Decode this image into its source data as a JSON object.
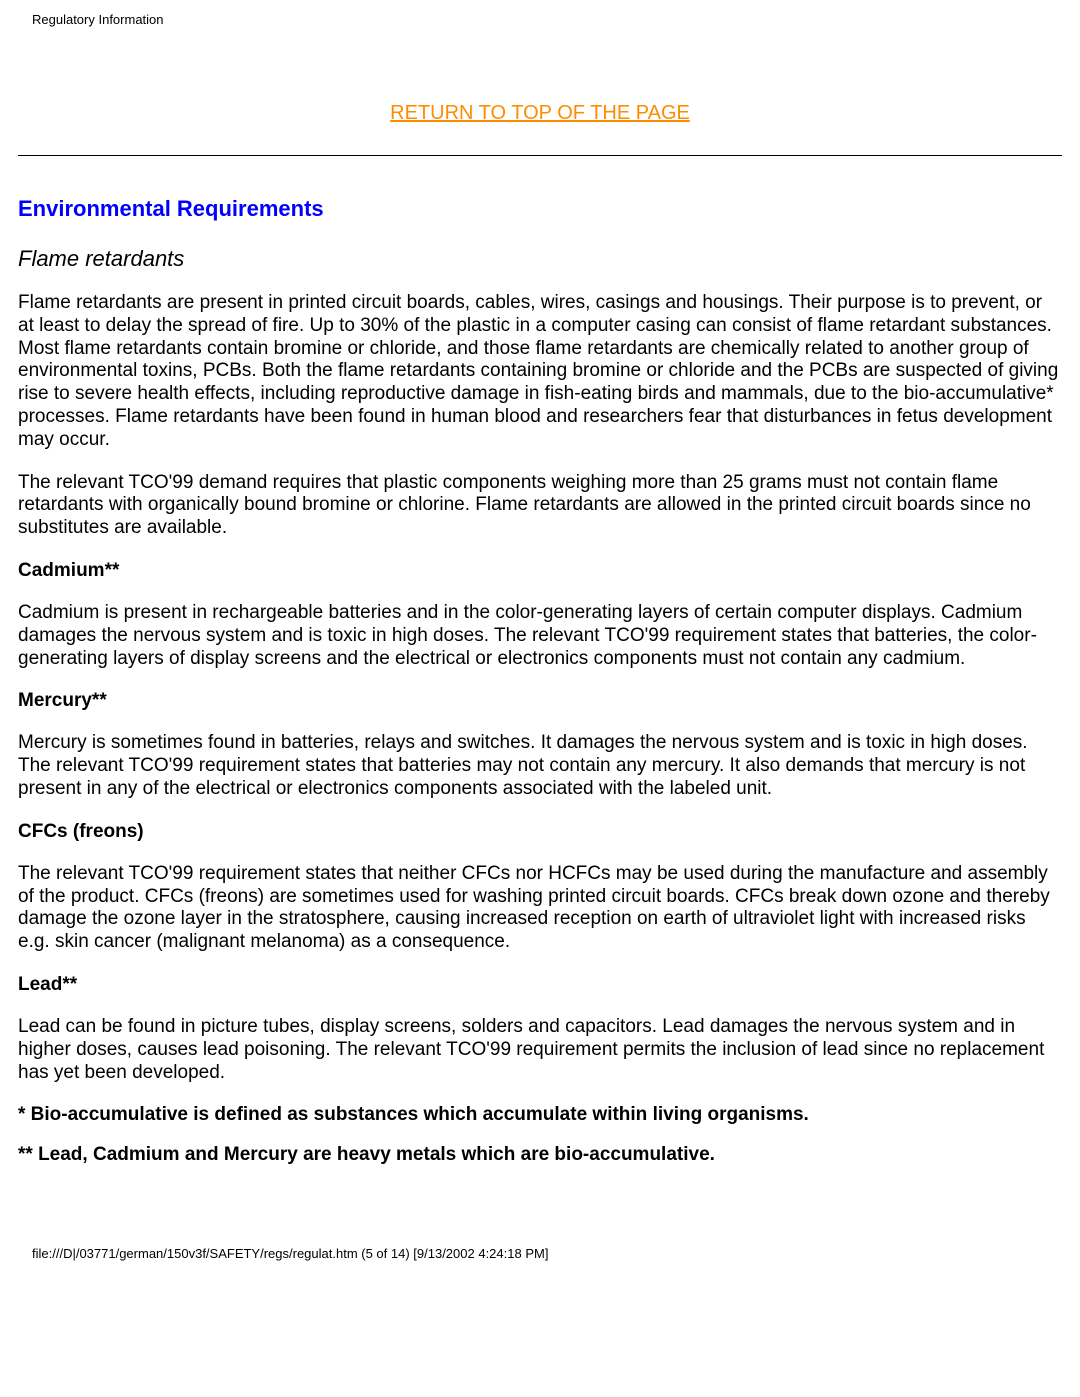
{
  "header": {
    "title": "Regulatory Information"
  },
  "topLink": {
    "text": "RETURN TO TOP OF THE PAGE"
  },
  "sectionHeading": "Environmental Requirements",
  "flameRetardants": {
    "heading": "Flame retardants",
    "para1": "Flame retardants are present in printed circuit boards, cables, wires, casings and housings. Their purpose is to prevent, or at least to delay the spread of fire. Up to 30% of the plastic in a computer casing can consist of flame retardant substances. Most flame retardants contain bromine or chloride, and those flame retardants are chemically related to another group of environmental toxins, PCBs. Both the flame retardants containing bromine or chloride and the PCBs are suspected of giving rise to severe health effects, including reproductive damage in fish-eating birds and mammals, due to the bio-accumulative* processes. Flame retardants have been found in human blood and researchers fear that disturbances in fetus development may occur.",
    "para2": "The relevant TCO'99 demand requires that plastic components weighing more than 25 grams must not contain flame retardants with organically bound bromine or chlorine. Flame retardants are allowed in the printed circuit boards since no substitutes are available."
  },
  "cadmium": {
    "heading": "Cadmium**",
    "para": "Cadmium is present in rechargeable batteries and in the color-generating layers of certain computer displays. Cadmium damages the nervous system and is toxic in high doses. The relevant TCO'99 requirement states that batteries, the color-generating layers of display screens and the electrical or electronics components must not contain any cadmium."
  },
  "mercury": {
    "heading": "Mercury**",
    "para": "Mercury is sometimes found in batteries, relays and switches. It damages the nervous system and is toxic in high doses. The relevant TCO'99 requirement states that batteries may not contain any mercury. It also demands that mercury is not present in any of the electrical or electronics components associated with the labeled unit."
  },
  "cfcs": {
    "heading": "CFCs (freons)",
    "para": "The relevant TCO'99 requirement states that neither CFCs nor HCFCs may be used during the manufacture and assembly of the product. CFCs (freons) are sometimes used for washing printed circuit boards. CFCs break down ozone and thereby damage the ozone layer in the stratosphere, causing increased reception on earth of ultraviolet light with increased risks e.g. skin cancer (malignant melanoma) as a consequence."
  },
  "lead": {
    "heading": "Lead**",
    "para": "Lead can be found in picture tubes, display screens, solders and capacitors. Lead damages the nervous system and in higher doses, causes lead poisoning. The relevant TCO'99 requirement permits the inclusion of lead since no replacement has yet been developed."
  },
  "footnotes": {
    "note1": "* Bio-accumulative is defined as substances which accumulate within living organisms.",
    "note2": "** Lead, Cadmium and Mercury are heavy metals which are bio-accumulative."
  },
  "footer": {
    "text": "file:///D|/03771/german/150v3f/SAFETY/regs/regulat.htm (5 of 14) [9/13/2002 4:24:18 PM]"
  }
}
